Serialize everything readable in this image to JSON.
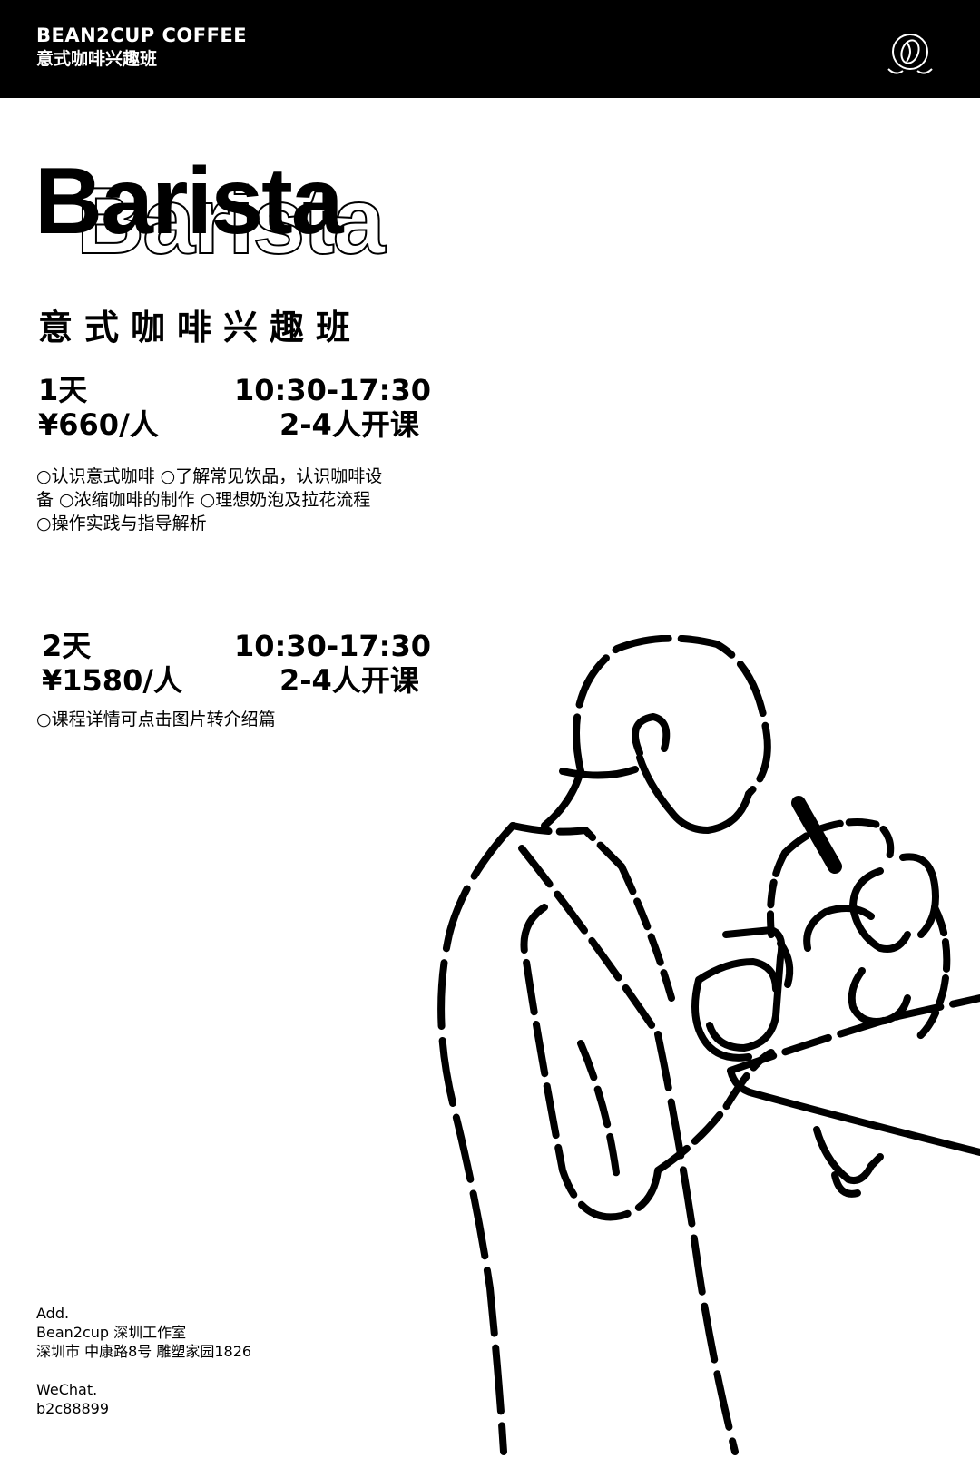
{
  "header": {
    "brand": "BEAN2CUP COFFEE",
    "subtitle": "意式咖啡兴趣班",
    "logo_icon": "coffee-bean-emblem-icon"
  },
  "hero": {
    "title": "Barista",
    "subtitle": "意式咖啡兴趣班"
  },
  "course1": {
    "duration": "1天",
    "time": "10:30-17:30",
    "price": "¥660/人",
    "group": "2-4人开课",
    "desc_line1": "○认识意式咖啡 ○了解常见饮品，认识咖啡设",
    "desc_line2": "备 ○浓缩咖啡的制作 ○理想奶泡及拉花流程",
    "desc_line3": "○操作实践与指导解析"
  },
  "course2": {
    "duration": "2天",
    "time": "10:30-17:30",
    "price": "¥1580/人",
    "group": "2-4人开课",
    "desc_line1": "○课程详情可点击图片转介绍篇"
  },
  "footer": {
    "add_label": "Add.",
    "address_line1": "Bean2cup 深圳工作室",
    "address_line2": "深圳市  中康路8号  雕塑家园1826",
    "wechat_label": "WeChat.",
    "wechat_id": "b2c88899"
  },
  "colors": {
    "ink": "#000000",
    "paper": "#ffffff"
  }
}
